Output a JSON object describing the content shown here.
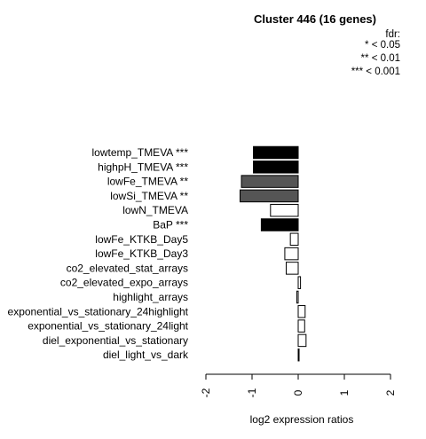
{
  "chart_data": {
    "type": "bar",
    "orientation": "horizontal",
    "title": "Cluster 446 (16 genes)",
    "xlabel": "log2 expression ratios",
    "ylabel": "",
    "xlim": [
      -2,
      2
    ],
    "x_ticks": [
      "-2",
      "-1",
      "0",
      "1",
      "2"
    ],
    "legend": {
      "title": "fdr:",
      "entries": [
        "* < 0.05",
        "** < 0.01",
        "*** < 0.001"
      ],
      "placement": "top-right"
    },
    "categories": [
      "lowtemp_TMEVA ***",
      "highpH_TMEVA ***",
      "lowFe_TMEVA **",
      "lowSi_TMEVA **",
      "lowN_TMEVA",
      "BaP ***",
      "lowFe_KTKB_Day5",
      "lowFe_KTKB_Day3",
      "co2_elevated_stat_arrays",
      "co2_elevated_expo_arrays",
      "highlight_arrays",
      "exponential_vs_stationary_24highlight",
      "exponential_vs_stationary_24light",
      "diel_exponential_vs_stationary",
      "diel_light_vs_dark"
    ],
    "values": [
      -0.97,
      -0.97,
      -1.23,
      -1.26,
      -0.6,
      -0.8,
      -0.17,
      -0.29,
      -0.26,
      0.05,
      -0.03,
      0.15,
      0.14,
      0.17,
      0.01
    ],
    "bar_colors": [
      "#000000",
      "#000000",
      "#555555",
      "#555555",
      "#ffffff",
      "#000000",
      "#ffffff",
      "#ffffff",
      "#ffffff",
      "#ffffff",
      "#ffffff",
      "#ffffff",
      "#ffffff",
      "#ffffff",
      "#ffffff"
    ],
    "grid": false
  }
}
